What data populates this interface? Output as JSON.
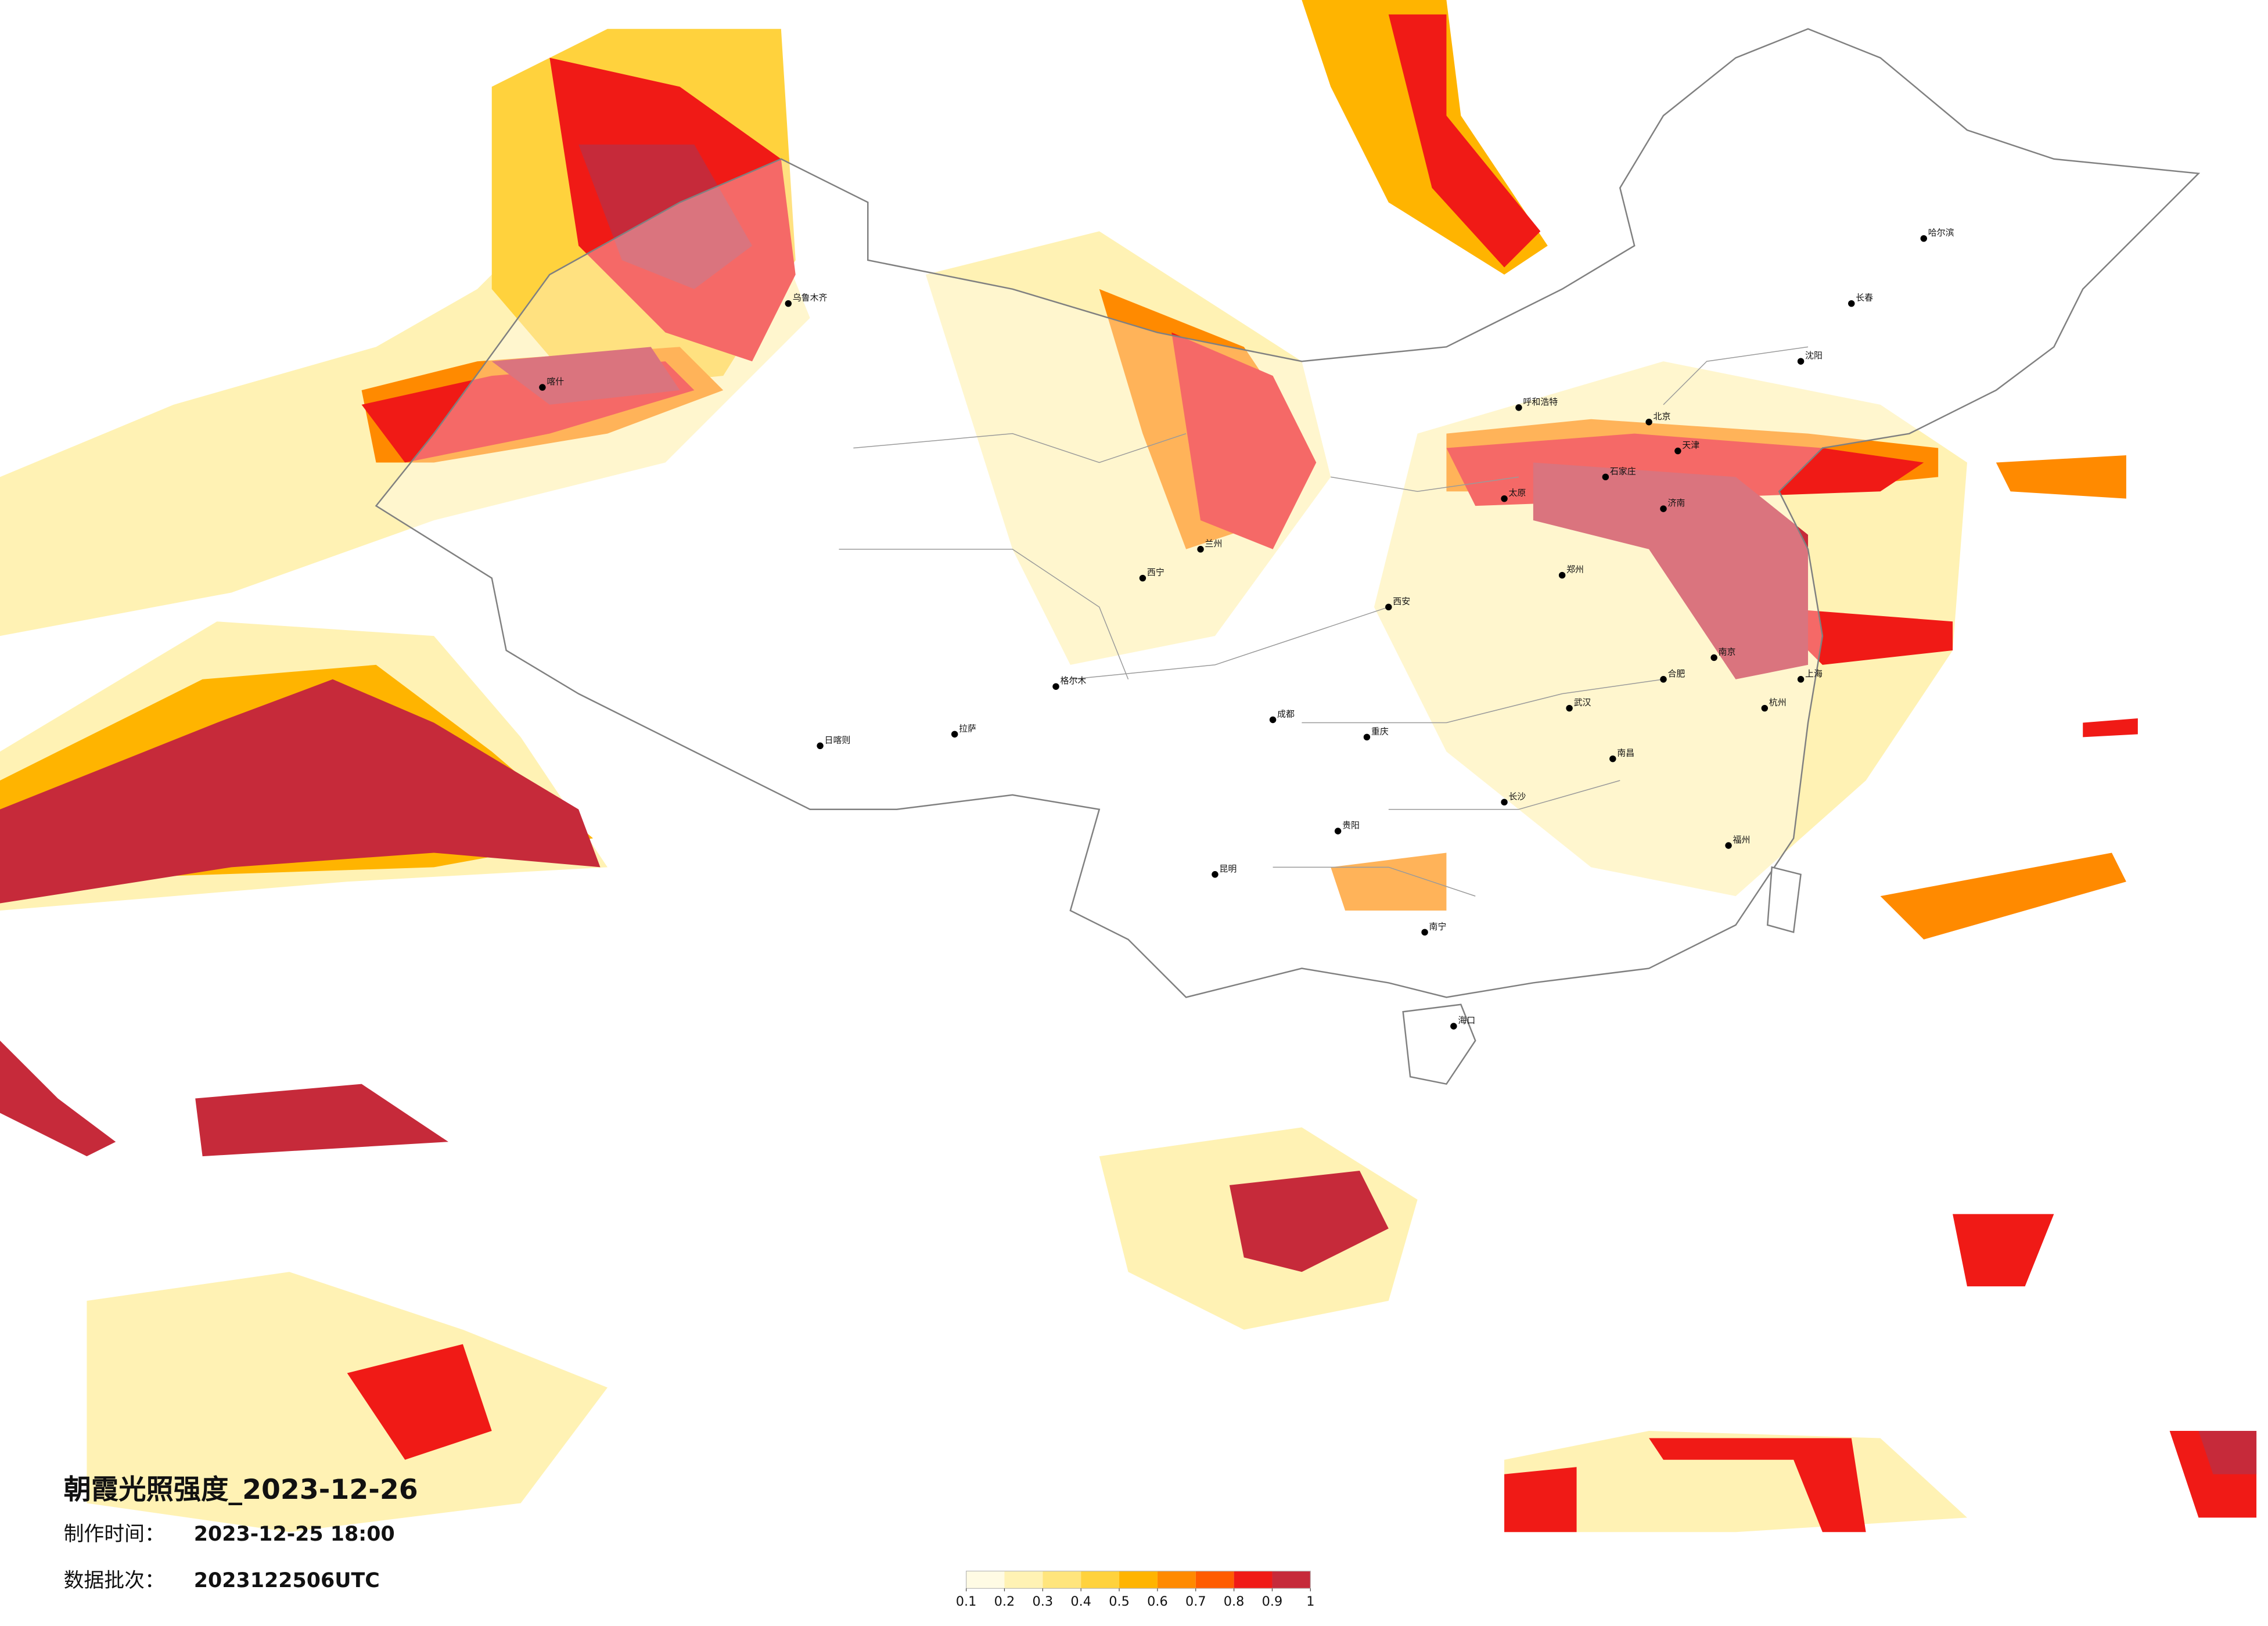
{
  "map": {
    "title": "朝霞光照强度_2023-12-26",
    "made_label": "制作时间：",
    "made_time": "2023-12-25 18:00",
    "batch_label": "数据批次：",
    "batch": "2023122506UTC",
    "cities": [
      "北京",
      "天津",
      "石家庄",
      "济南",
      "郑州",
      "西安",
      "兰州",
      "西宁",
      "成都",
      "重庆",
      "贵阳",
      "昆明",
      "南宁",
      "海口",
      "长沙",
      "武汉",
      "南昌",
      "福州",
      "杭州",
      "上海",
      "南京",
      "合肥",
      "太原",
      "呼和浩特",
      "沈阳",
      "长春",
      "哈尔滨",
      "拉萨",
      "日喀则",
      "乌鲁木齐",
      "喀什",
      "格尔木"
    ]
  },
  "legend": {
    "colors": [
      "#fffbe4",
      "#fff2b4",
      "#ffe57d",
      "#ffd23d",
      "#ffb400",
      "#ff8a00",
      "#ff5c00",
      "#f01a16",
      "#c62a3a"
    ],
    "ticks": [
      0.1,
      0.2,
      0.3,
      0.4,
      0.5,
      0.6,
      0.7,
      0.8,
      0.9,
      1
    ]
  }
}
